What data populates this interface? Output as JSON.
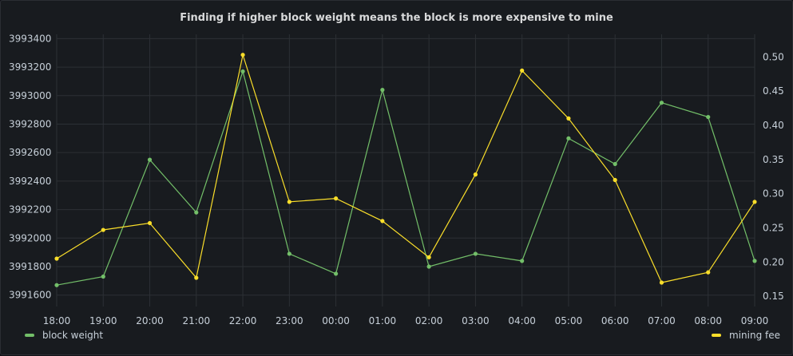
{
  "chart_data": {
    "type": "line",
    "title": "Finding if higher block weight means the block is more expensive to mine",
    "categories": [
      "18:00",
      "19:00",
      "20:00",
      "21:00",
      "22:00",
      "23:00",
      "00:00",
      "01:00",
      "02:00",
      "03:00",
      "04:00",
      "05:00",
      "06:00",
      "07:00",
      "08:00",
      "09:00"
    ],
    "y_left_ticks": [
      "3991600",
      "3991800",
      "3992000",
      "3992200",
      "3992400",
      "3992600",
      "3992800",
      "3993000",
      "3993200",
      "3993400"
    ],
    "y_left_range": [
      3991520,
      3993430
    ],
    "y_right_ticks": [
      "0.15",
      "0.20",
      "0.25",
      "0.30",
      "0.35",
      "0.40",
      "0.45",
      "0.50"
    ],
    "y_right_range": [
      0.135,
      0.533
    ],
    "series": [
      {
        "name": "block weight",
        "axis": "left",
        "color": "#73bf69",
        "values": [
          3991670,
          3991730,
          3992550,
          3992180,
          3993170,
          3991890,
          3991750,
          3993040,
          3991800,
          3991890,
          3991840,
          3992700,
          3992520,
          3992950,
          3992850,
          3991840
        ]
      },
      {
        "name": "mining fee",
        "axis": "right",
        "color": "#fade2a",
        "values": [
          0.205,
          0.247,
          0.257,
          0.177,
          0.503,
          0.288,
          0.293,
          0.26,
          0.207,
          0.328,
          0.48,
          0.41,
          0.32,
          0.17,
          0.185,
          0.288
        ]
      }
    ],
    "grid": true,
    "legend_position": "bottom"
  }
}
